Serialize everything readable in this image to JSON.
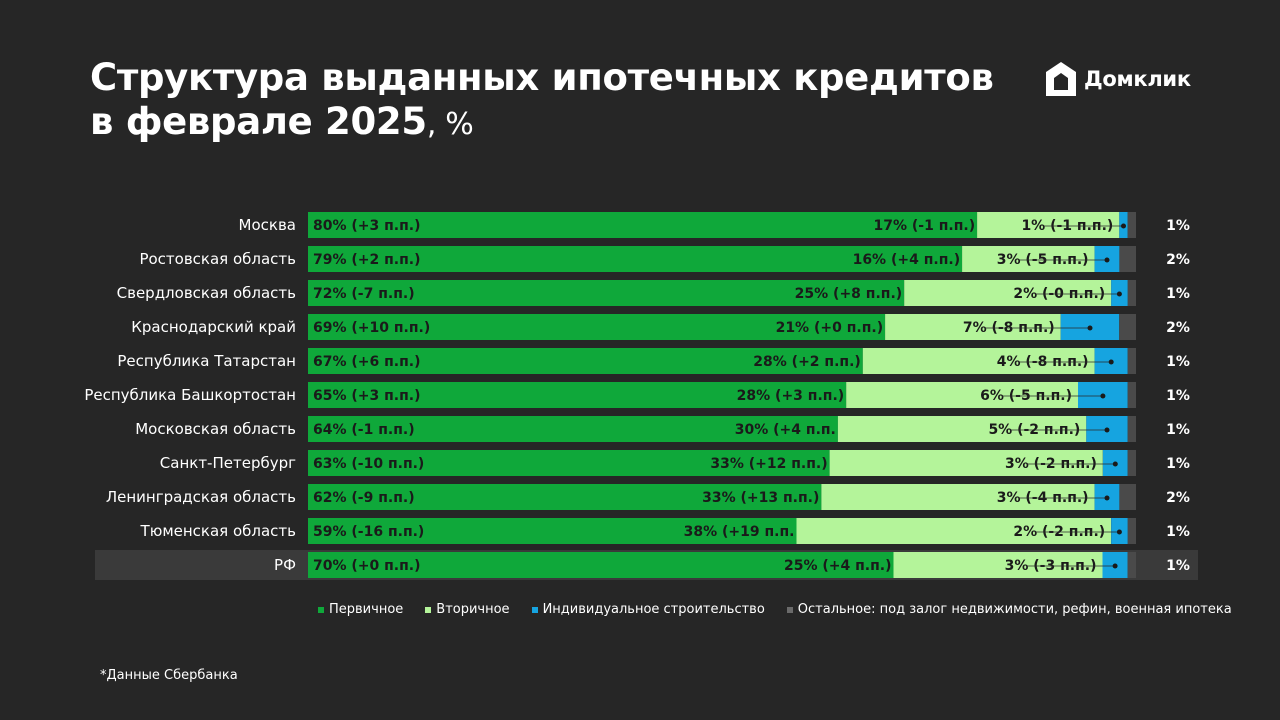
{
  "title": {
    "line1": "Структура выданных ипотечных кредитов",
    "line2": "в феврале 2025",
    "unit": ", %"
  },
  "logo": {
    "text": "Домклик",
    "icon": "house-logo-icon"
  },
  "footnote": "*Данные Сбербанка",
  "colors": {
    "primary": "#0fa83a",
    "secondary": "#b4f49a",
    "individual": "#16a4e0",
    "other": "#4a4a4a",
    "highlight_row": "#3a3a3a"
  },
  "chart_data": {
    "type": "bar",
    "orientation": "horizontal",
    "stacked": true,
    "categories": [
      "Москва",
      "Ростовская область",
      "Свердловская область",
      "Краснодарский край",
      "Республика Татарстан",
      "Республика Башкортостан",
      "Московская область",
      "Санкт-Петербург",
      "Ленинградская область",
      "Тюменская область",
      "РФ"
    ],
    "highlighted_category": "РФ",
    "series": [
      {
        "name": "Первичное",
        "color": "#0fa83a",
        "values": [
          80,
          79,
          72,
          69,
          67,
          65,
          64,
          63,
          62,
          59,
          70
        ],
        "labels": [
          "80% (+3 п.п.)",
          "79% (+2 п.п.)",
          "72% (-7 п.п.)",
          "69% (+10 п.п.)",
          "67% (+6 п.п.)",
          "65% (+3 п.п.)",
          "64% (-1 п.п.)",
          "63% (-10 п.п.)",
          "62% (-9 п.п.)",
          "59% (-16 п.п.)",
          "70% (+0 п.п.)"
        ]
      },
      {
        "name": "Вторичное",
        "color": "#b4f49a",
        "values": [
          17,
          16,
          25,
          21,
          28,
          28,
          30,
          33,
          33,
          38,
          25
        ],
        "labels": [
          "17% (-1 п.п.)",
          "16% (+4 п.п.)",
          "25% (+8 п.п.)",
          "21% (+0 п.п.)",
          "28% (+2 п.п.)",
          "28% (+3 п.п.)",
          "30% (+4 п.п.",
          "33% (+12 п.п.)",
          "33% (+13 п.п.)",
          "38% (+19 п.п.",
          "25% (+4 п.п.)"
        ]
      },
      {
        "name": "Индивидуальное строительство",
        "color": "#16a4e0",
        "values": [
          1,
          3,
          2,
          7,
          4,
          6,
          5,
          3,
          3,
          2,
          3
        ],
        "labels": [
          "1% (-1 п.п.)",
          "3% (-5 п.п.)",
          "2% (-0 п.п.)",
          "7% (-8 п.п.)",
          "4% (-8 п.п.)",
          "6% (-5 п.п.)",
          "5% (-2 п.п.)",
          "3% (-2 п.п.)",
          "3% (-4 п.п.)",
          "2% (-2 п.п.)",
          "3% (-3 п.п.)"
        ]
      },
      {
        "name": "Остальное: под залог недвижимости, рефин, военная ипотека",
        "color": "#4a4a4a",
        "values": [
          1,
          2,
          1,
          2,
          1,
          1,
          1,
          1,
          2,
          1,
          1
        ],
        "labels": [
          "1%",
          "2%",
          "1%",
          "2%",
          "1%",
          "1%",
          "1%",
          "1%",
          "2%",
          "1%",
          "1%"
        ]
      }
    ],
    "xlim": [
      0,
      100
    ],
    "legend_position": "bottom"
  }
}
